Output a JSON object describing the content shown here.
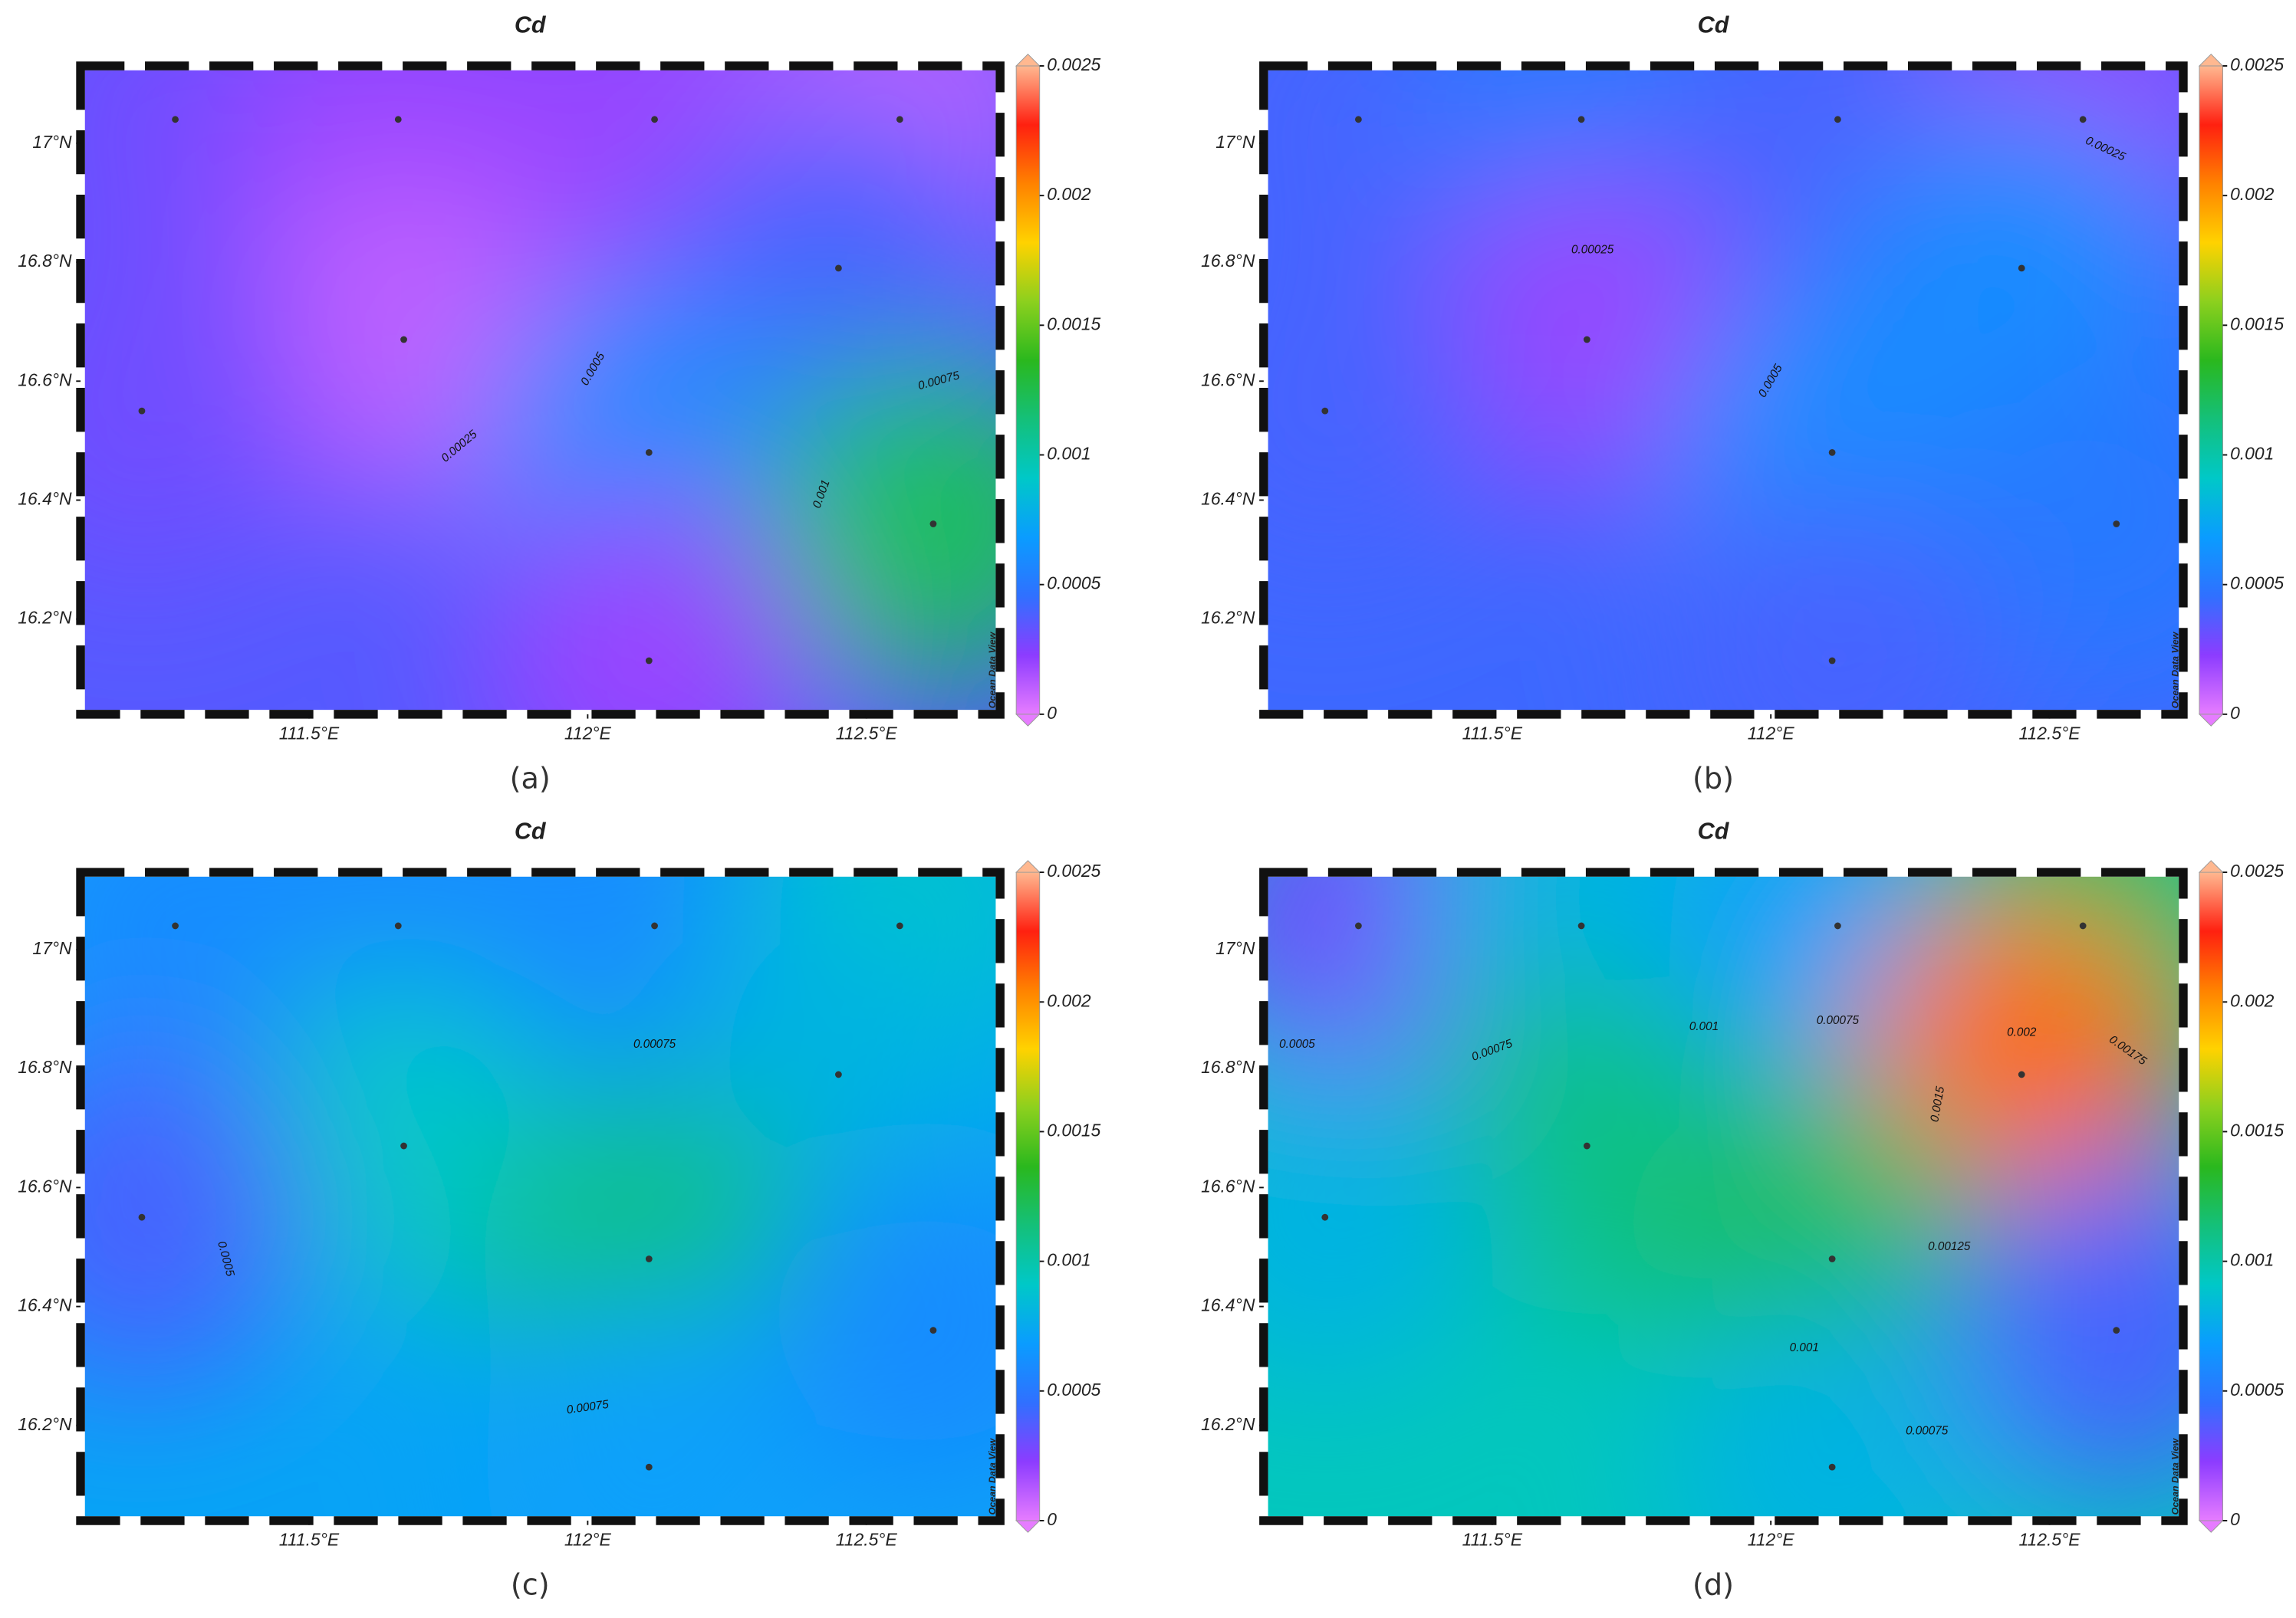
{
  "chart_data": [
    {
      "type": "contour",
      "title": "Cd",
      "panel_label": "(a)",
      "colorbar_label": "Ocean Data View",
      "xlim": [
        111.09,
        112.74
      ],
      "ylim": [
        16.04,
        17.13
      ],
      "xticks": [
        {
          "value": 111.5,
          "label": "111.5°E"
        },
        {
          "value": 112,
          "label": "112°E"
        },
        {
          "value": 112.5,
          "label": "112.5°E"
        }
      ],
      "yticks": [
        {
          "value": 16.2,
          "label": "16.2°N"
        },
        {
          "value": 16.4,
          "label": "16.4°N"
        },
        {
          "value": 16.6,
          "label": "16.6°N"
        },
        {
          "value": 16.8,
          "label": "16.8°N"
        },
        {
          "value": 17,
          "label": "17°N"
        }
      ],
      "clim": [
        0,
        0.0025
      ],
      "cticks": [
        0,
        0.0005,
        0.001,
        0.0015,
        0.002,
        0.0025
      ],
      "colormap": [
        "#e67cff",
        "#8c3cff",
        "#3070ff",
        "#0a9cff",
        "#00c8c8",
        "#14c07a",
        "#2ab81e",
        "#8cd01e",
        "#ffd200",
        "#ff8200",
        "#ff2010",
        "#ffb890"
      ],
      "stations": {
        "x": [
          111.26,
          111.66,
          112.12,
          112.56,
          112.45,
          111.67,
          111.2,
          112.11,
          112.62,
          112.11
        ],
        "y": [
          17.04,
          17.04,
          17.04,
          17.04,
          16.79,
          16.67,
          16.55,
          16.48,
          16.36,
          16.13
        ],
        "values": [
          0.0003,
          0.0002,
          0.0002,
          0.0001,
          0.0004,
          0.0001,
          0.0003,
          0.0006,
          0.0012,
          0.0002
        ]
      },
      "contour_labels": [
        0.00025,
        0.0005,
        0.00075,
        0.001
      ]
    },
    {
      "type": "contour",
      "title": "Cd",
      "panel_label": "(b)",
      "colorbar_label": "Ocean Data View",
      "xlim": [
        111.09,
        112.74
      ],
      "ylim": [
        16.04,
        17.13
      ],
      "xticks": [
        {
          "value": 111.5,
          "label": "111.5°E"
        },
        {
          "value": 112,
          "label": "112°E"
        },
        {
          "value": 112.5,
          "label": "112.5°E"
        }
      ],
      "yticks": [
        {
          "value": 16.2,
          "label": "16.2°N"
        },
        {
          "value": 16.4,
          "label": "16.4°N"
        },
        {
          "value": 16.6,
          "label": "16.6°N"
        },
        {
          "value": 16.8,
          "label": "16.8°N"
        },
        {
          "value": 17,
          "label": "17°N"
        }
      ],
      "clim": [
        0,
        0.0025
      ],
      "cticks": [
        0,
        0.0005,
        0.001,
        0.0015,
        0.002,
        0.0025
      ],
      "colormap": [
        "#e67cff",
        "#8c3cff",
        "#3070ff",
        "#0a9cff",
        "#00c8c8",
        "#14c07a",
        "#2ab81e",
        "#8cd01e",
        "#ffd200",
        "#ff8200",
        "#ff2010",
        "#ffb890"
      ],
      "stations": {
        "x": [
          111.26,
          111.66,
          112.12,
          112.56,
          112.45,
          111.67,
          111.2,
          112.11,
          112.62,
          112.11
        ],
        "y": [
          17.04,
          17.04,
          17.04,
          17.04,
          16.79,
          16.67,
          16.55,
          16.48,
          16.36,
          16.13
        ],
        "values": [
          0.0004,
          0.0005,
          0.0004,
          0.0002,
          0.0006,
          0.0002,
          0.0004,
          0.0006,
          0.0005,
          0.0004
        ]
      },
      "contour_labels": [
        0.00025,
        0.0005,
        0.00025
      ]
    },
    {
      "type": "contour",
      "title": "Cd",
      "panel_label": "(c)",
      "colorbar_label": "Ocean Data View",
      "xlim": [
        111.09,
        112.74
      ],
      "ylim": [
        16.04,
        17.13
      ],
      "xticks": [
        {
          "value": 111.5,
          "label": "111.5°E"
        },
        {
          "value": 112,
          "label": "112°E"
        },
        {
          "value": 112.5,
          "label": "112.5°E"
        }
      ],
      "yticks": [
        {
          "value": 16.2,
          "label": "16.2°N"
        },
        {
          "value": 16.4,
          "label": "16.4°N"
        },
        {
          "value": 16.6,
          "label": "16.6°N"
        },
        {
          "value": 16.8,
          "label": "16.8°N"
        },
        {
          "value": 17,
          "label": "17°N"
        }
      ],
      "clim": [
        0,
        0.0025
      ],
      "cticks": [
        0,
        0.0005,
        0.001,
        0.0015,
        0.002,
        0.0025
      ],
      "colormap": [
        "#e67cff",
        "#8c3cff",
        "#3070ff",
        "#0a9cff",
        "#00c8c8",
        "#14c07a",
        "#2ab81e",
        "#8cd01e",
        "#ffd200",
        "#ff8200",
        "#ff2010",
        "#ffb890"
      ],
      "stations": {
        "x": [
          111.26,
          111.66,
          112.12,
          112.56,
          112.45,
          111.67,
          111.2,
          112.11,
          112.62,
          112.11
        ],
        "y": [
          17.04,
          17.04,
          17.04,
          17.04,
          16.79,
          16.67,
          16.55,
          16.48,
          16.36,
          16.13
        ],
        "values": [
          0.0006,
          0.0006,
          0.0006,
          0.0009,
          0.0008,
          0.0009,
          0.0004,
          0.0011,
          0.0006,
          0.0007
        ]
      },
      "contour_labels": [
        0.00075,
        0.0005,
        0.00075
      ]
    },
    {
      "type": "contour",
      "title": "Cd",
      "panel_label": "(d)",
      "colorbar_label": "Ocean Data View",
      "xlim": [
        111.09,
        112.74
      ],
      "ylim": [
        16.04,
        17.13
      ],
      "xticks": [
        {
          "value": 111.5,
          "label": "111.5°E"
        },
        {
          "value": 112,
          "label": "112°E"
        },
        {
          "value": 112.5,
          "label": "112.5°E"
        }
      ],
      "yticks": [
        {
          "value": 16.2,
          "label": "16.2°N"
        },
        {
          "value": 16.4,
          "label": "16.4°N"
        },
        {
          "value": 16.6,
          "label": "16.6°N"
        },
        {
          "value": 16.8,
          "label": "16.8°N"
        },
        {
          "value": 17,
          "label": "17°N"
        }
      ],
      "clim": [
        0,
        0.0025
      ],
      "cticks": [
        0,
        0.0005,
        0.001,
        0.0015,
        0.002,
        0.0025
      ],
      "colormap": [
        "#e67cff",
        "#8c3cff",
        "#3070ff",
        "#0a9cff",
        "#00c8c8",
        "#14c07a",
        "#2ab81e",
        "#8cd01e",
        "#ffd200",
        "#ff8200",
        "#ff2010",
        "#ffb890"
      ],
      "stations": {
        "x": [
          111.26,
          111.66,
          112.12,
          112.56,
          112.45,
          111.67,
          111.2,
          112.11,
          112.62,
          112.11
        ],
        "y": [
          17.04,
          17.04,
          17.04,
          17.04,
          16.79,
          16.67,
          16.55,
          16.48,
          16.36,
          16.13
        ],
        "values": [
          0.0003,
          0.0008,
          0.0007,
          0.0012,
          0.0021,
          0.0011,
          0.0008,
          0.0012,
          0.0004,
          0.0008
        ]
      },
      "contour_labels": [
        0.0005,
        0.00075,
        0.001,
        0.00075,
        0.002,
        0.00175,
        0.0015,
        0.00125,
        0.001,
        0.00075
      ]
    }
  ]
}
